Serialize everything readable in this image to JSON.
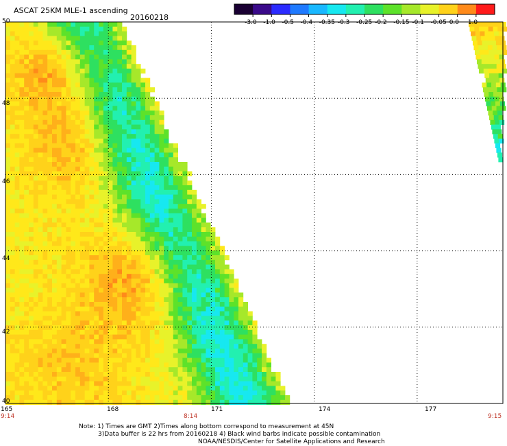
{
  "title": "ASCAT 25KM MLE-1 ascending",
  "date": "20160218",
  "colorbar": {
    "ticks": [
      "-3.0",
      "-1.0",
      "-0.5",
      "-0.4",
      "-0.35",
      "-0.3",
      "-0.25",
      "-0.2",
      "-0.15",
      "-0.1",
      "-0.05",
      "0.0",
      "1.0"
    ],
    "colors": [
      "#1a0033",
      "#3a0a8a",
      "#2b2bff",
      "#1f7aff",
      "#19b8ff",
      "#17e8f0",
      "#22f0b0",
      "#2ee060",
      "#5de22a",
      "#a6e82a",
      "#e8f22a",
      "#ffd21a",
      "#ff8a1a",
      "#ff1a1a"
    ]
  },
  "map": {
    "lat_labels": [
      "50",
      "48",
      "46",
      "44",
      "42",
      "40"
    ],
    "lon_labels": [
      "165",
      "168",
      "171",
      "174",
      "177"
    ],
    "time_labels": [
      "9:14",
      "8:14",
      "9:15"
    ],
    "lat_range": [
      40,
      50
    ],
    "lon_range": [
      165,
      179.5
    ]
  },
  "notes": {
    "line1": "Note: 1) Times are GMT 2)Times along bottom correspond to measurement at 45N",
    "line2": "3)Data buffer is 22 hrs from 20160218 4) Black wind barbs indicate possible contamination",
    "line3": "NOAA/NESDIS/Center for Satellite Applications and Research"
  }
}
